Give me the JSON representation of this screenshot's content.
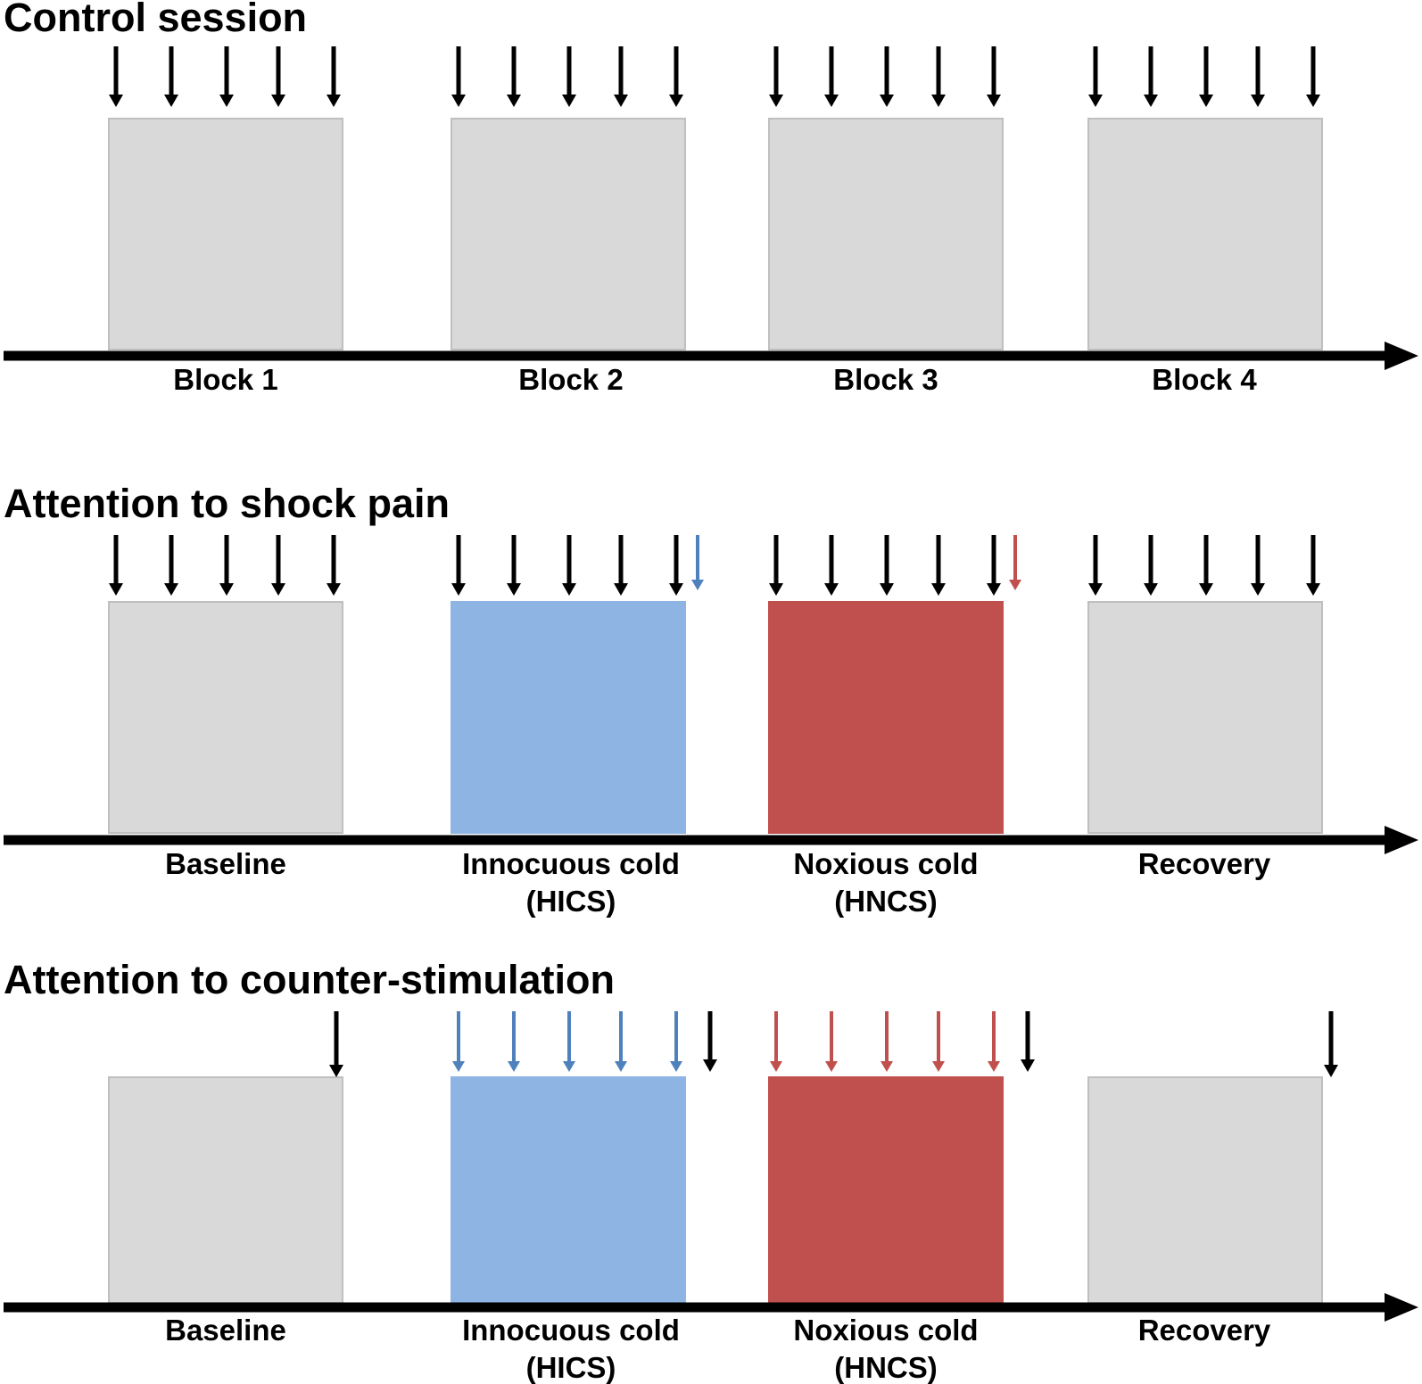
{
  "colors": {
    "background": "#ffffff",
    "axis": "#000000",
    "neutral_block": "#d9d9d9",
    "neutral_block_border": "#bfbfbf",
    "cold_block": "#8eb4e3",
    "noxious_block": "#c0504d",
    "arrow_black": "#000000",
    "arrow_blue": "#4f81bd",
    "arrow_red": "#c0504d"
  },
  "sections": [
    {
      "id": "control",
      "title": "Control session",
      "blocks": [
        {
          "fill": "neutral",
          "label": [
            "Block 1"
          ]
        },
        {
          "fill": "neutral",
          "label": [
            "Block 2"
          ]
        },
        {
          "fill": "neutral",
          "label": [
            "Block 3"
          ]
        },
        {
          "fill": "neutral",
          "label": [
            "Block 4"
          ]
        }
      ],
      "arrow_groups": [
        {
          "block": 0,
          "thick": 5,
          "thin_after": null
        },
        {
          "block": 1,
          "thick": 5,
          "thin_after": null
        },
        {
          "block": 2,
          "thick": 5,
          "thin_after": null
        },
        {
          "block": 3,
          "thick": 5,
          "thin_after": null
        }
      ]
    },
    {
      "id": "shock",
      "title": "Attention to shock pain",
      "blocks": [
        {
          "fill": "neutral",
          "label": [
            "Baseline"
          ]
        },
        {
          "fill": "cold",
          "label": [
            "Innocuous cold",
            "(HICS)"
          ]
        },
        {
          "fill": "noxious",
          "label": [
            "Noxious cold",
            "(HNCS)"
          ]
        },
        {
          "fill": "neutral",
          "label": [
            "Recovery"
          ]
        }
      ],
      "arrow_groups": [
        {
          "block": 0,
          "thick": 5,
          "thick_color": "black",
          "thin_after": null
        },
        {
          "block": 1,
          "thick": 5,
          "thick_color": "black",
          "thin_after": "blue"
        },
        {
          "block": 2,
          "thick": 5,
          "thick_color": "black",
          "thin_after": "red"
        },
        {
          "block": 3,
          "thick": 5,
          "thick_color": "black",
          "thin_after": null
        }
      ]
    },
    {
      "id": "counter",
      "title": "Attention to counter-stimulation",
      "blocks": [
        {
          "fill": "neutral",
          "label": [
            "Baseline"
          ]
        },
        {
          "fill": "cold",
          "label": [
            "Innocuous cold",
            "(HICS)"
          ]
        },
        {
          "fill": "noxious",
          "label": [
            "Noxious cold",
            "(HNCS)"
          ]
        },
        {
          "fill": "neutral",
          "label": [
            "Recovery"
          ]
        }
      ],
      "arrow_groups": [
        {
          "block": 0,
          "single_end_black": true
        },
        {
          "block": 1,
          "thin": 5,
          "thin_color": "blue",
          "end_black": true
        },
        {
          "block": 2,
          "thin": 5,
          "thin_color": "red",
          "end_black": true
        },
        {
          "block": 3,
          "single_end_black": true
        }
      ]
    }
  ]
}
